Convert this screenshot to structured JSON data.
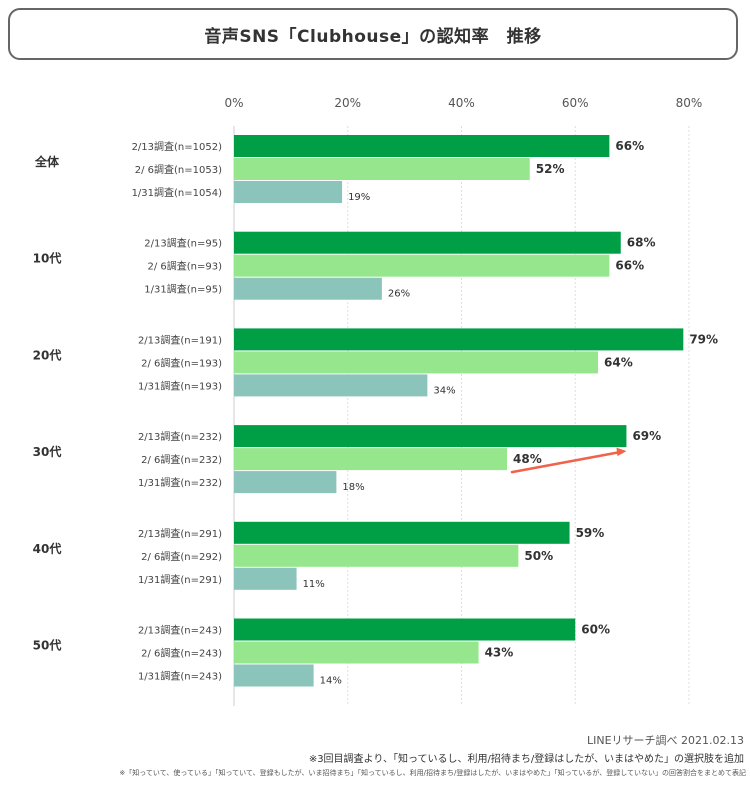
{
  "chart_data": {
    "type": "bar",
    "orientation": "horizontal",
    "title": "音声SNS「Clubhouse」の認知率　推移",
    "x_ticks": [
      "0%",
      "20%",
      "40%",
      "60%",
      "80%"
    ],
    "xlim": [
      0,
      80
    ],
    "unit": "%",
    "grid": true,
    "series_colors": [
      "#009e45",
      "#96e68e",
      "#8ac4ba"
    ],
    "groups": [
      {
        "name": "全体",
        "bars": [
          {
            "label": "2/13調査(n=1052)",
            "value": 66,
            "value_label": "66%"
          },
          {
            "label": "2/   6調査(n=1053)",
            "value": 52,
            "value_label": "52%"
          },
          {
            "label": "1/31調査(n=1054)",
            "value": 19,
            "value_label": "19%"
          }
        ]
      },
      {
        "name": "10代",
        "bars": [
          {
            "label": "2/13調査(n=95)",
            "value": 68,
            "value_label": "68%"
          },
          {
            "label": "2/   6調査(n=93)",
            "value": 66,
            "value_label": "66%"
          },
          {
            "label": "1/31調査(n=95)",
            "value": 26,
            "value_label": "26%"
          }
        ]
      },
      {
        "name": "20代",
        "bars": [
          {
            "label": "2/13調査(n=191)",
            "value": 79,
            "value_label": "79%"
          },
          {
            "label": "2/   6調査(n=193)",
            "value": 64,
            "value_label": "64%"
          },
          {
            "label": "1/31調査(n=193)",
            "value": 34,
            "value_label": "34%"
          }
        ]
      },
      {
        "name": "30代",
        "bars": [
          {
            "label": "2/13調査(n=232)",
            "value": 69,
            "value_label": "69%"
          },
          {
            "label": "2/   6調査(n=232)",
            "value": 48,
            "value_label": "48%"
          },
          {
            "label": "1/31調査(n=232)",
            "value": 18,
            "value_label": "18%"
          }
        ]
      },
      {
        "name": "40代",
        "bars": [
          {
            "label": "2/13調査(n=291)",
            "value": 59,
            "value_label": "59%"
          },
          {
            "label": "2/   6調査(n=292)",
            "value": 50,
            "value_label": "50%"
          },
          {
            "label": "1/31調査(n=291)",
            "value": 11,
            "value_label": "11%"
          }
        ]
      },
      {
        "name": "50代",
        "bars": [
          {
            "label": "2/13調査(n=243)",
            "value": 60,
            "value_label": "60%"
          },
          {
            "label": "2/   6調査(n=243)",
            "value": 43,
            "value_label": "43%"
          },
          {
            "label": "1/31調査(n=243)",
            "value": 14,
            "value_label": "14%"
          }
        ]
      }
    ],
    "annotation": {
      "type": "arrow",
      "color": "#f0624a",
      "group": "30代",
      "from": "2/   6調査(n=232)",
      "to": "2/13調査(n=232)"
    }
  },
  "footer": {
    "source": "LINEリサーチ調べ 2021.02.13",
    "note1": "※3回目調査より、「知っているし、利用/招待まち/登録はしたが、いまはやめた」の選択肢を追加",
    "note2": "※「知っていて、使っている」「知っていて、登録もしたが、いま招待まち」「知っているし、利用/招待まち/登録はしたが、いまはやめた」「知っているが、登録していない」の回答割合をまとめて表記"
  }
}
